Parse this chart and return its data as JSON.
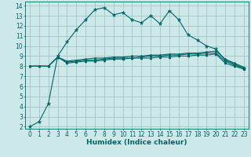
{
  "title": "",
  "xlabel": "Humidex (Indice chaleur)",
  "ylabel": "",
  "bg_color": "#cde8e8",
  "grid_color": "#9dbfbf",
  "line_color": "#006666",
  "xlim": [
    -0.5,
    23.5
  ],
  "ylim": [
    1.8,
    14.4
  ],
  "xticks": [
    0,
    1,
    2,
    3,
    4,
    5,
    6,
    7,
    8,
    9,
    10,
    11,
    12,
    13,
    14,
    15,
    16,
    17,
    18,
    19,
    20,
    21,
    22,
    23
  ],
  "yticks": [
    2,
    3,
    4,
    5,
    6,
    7,
    8,
    9,
    10,
    11,
    12,
    13,
    14
  ],
  "series1_x": [
    0,
    1,
    2,
    3,
    4,
    5,
    6,
    7,
    8,
    9,
    10,
    11,
    12,
    13,
    14,
    15,
    16,
    17,
    18,
    19,
    20,
    21,
    22,
    23
  ],
  "series1_y": [
    2.0,
    2.5,
    4.3,
    9.0,
    10.4,
    11.6,
    12.6,
    13.6,
    13.8,
    13.1,
    13.3,
    12.6,
    12.3,
    13.0,
    12.2,
    13.5,
    12.6,
    11.1,
    10.6,
    10.0,
    9.7,
    8.6,
    8.2,
    7.8
  ],
  "series2_x": [
    0,
    1,
    2,
    3,
    4,
    5,
    6,
    7,
    8,
    9,
    10,
    11,
    12,
    13,
    14,
    15,
    16,
    17,
    18,
    19,
    20,
    21,
    22,
    23
  ],
  "series2_y": [
    8.0,
    8.0,
    8.0,
    8.9,
    8.5,
    8.6,
    8.7,
    8.8,
    8.8,
    8.9,
    8.9,
    9.0,
    9.0,
    9.1,
    9.1,
    9.2,
    9.2,
    9.3,
    9.3,
    9.4,
    9.5,
    8.7,
    8.3,
    7.9
  ],
  "series3_x": [
    0,
    1,
    2,
    3,
    4,
    5,
    6,
    7,
    8,
    9,
    10,
    11,
    12,
    13,
    14,
    15,
    16,
    17,
    18,
    19,
    20,
    21,
    22,
    23
  ],
  "series3_y": [
    8.0,
    8.0,
    8.0,
    8.9,
    8.4,
    8.5,
    8.6,
    8.6,
    8.7,
    8.8,
    8.8,
    8.8,
    8.9,
    9.0,
    9.0,
    9.1,
    9.1,
    9.2,
    9.2,
    9.3,
    9.3,
    8.5,
    8.1,
    7.8
  ],
  "series4_x": [
    0,
    1,
    2,
    3,
    4,
    5,
    6,
    7,
    8,
    9,
    10,
    11,
    12,
    13,
    14,
    15,
    16,
    17,
    18,
    19,
    20,
    21,
    22,
    23
  ],
  "series4_y": [
    8.0,
    8.0,
    8.0,
    8.9,
    8.3,
    8.4,
    8.5,
    8.5,
    8.6,
    8.7,
    8.7,
    8.8,
    8.8,
    8.8,
    8.9,
    8.9,
    9.0,
    9.0,
    9.1,
    9.1,
    9.2,
    8.3,
    8.0,
    7.7
  ],
  "tick_fontsize": 5.5,
  "xlabel_fontsize": 6.5
}
